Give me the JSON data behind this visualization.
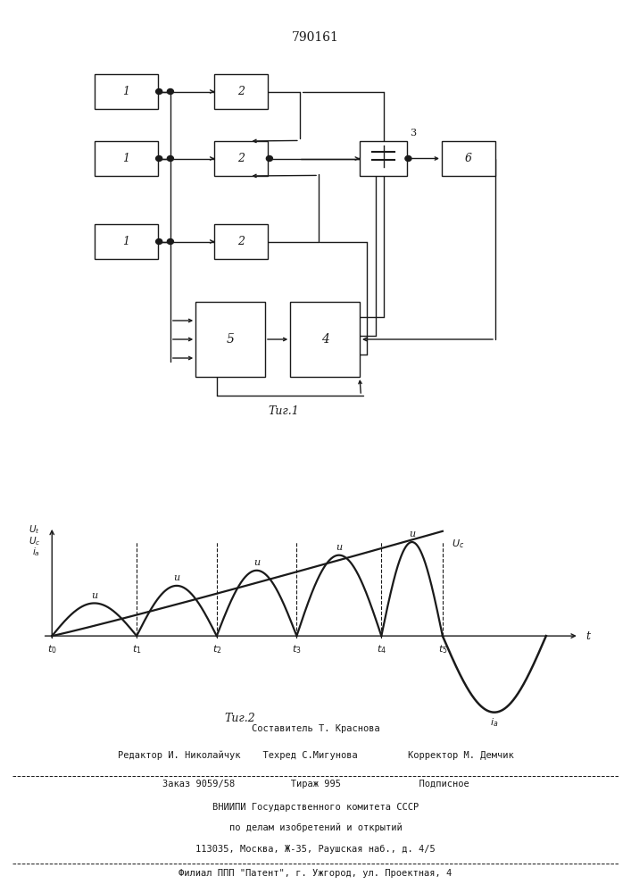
{
  "title_number": "790161",
  "fig1_label": "Τиг.1",
  "fig2_label": "Τиг.2",
  "footer_lines": [
    "Составитель Т. Краснова",
    "Редактор И. Николайчук    Техред С.Мигунова         Корректор М. Демчик",
    "Заказ 9059/58          Тираж 995              Подписное",
    "ВНИИПИ Государственного комитета СССР",
    "по делам изобретений и открытий",
    "113035, Москва, Ж-35, Раушская наб., д. 4/5",
    "Филиал ППП \"Патент\", г. Ужгород, ул. Проектная, 4"
  ],
  "line_color": "#1a1a1a"
}
